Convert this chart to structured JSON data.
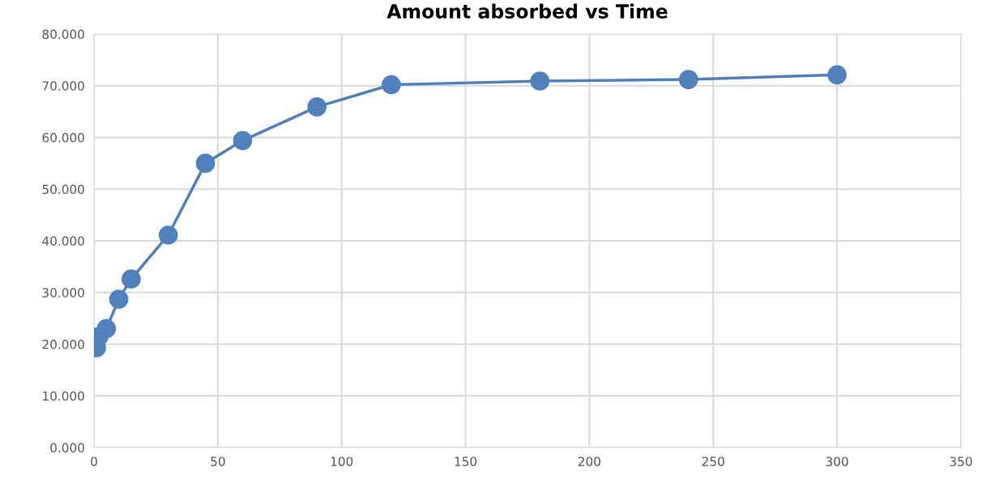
{
  "chart_data": {
    "type": "line",
    "title": "Amount absorbed vs Time",
    "x": [
      1,
      2,
      5,
      10,
      15,
      30,
      45,
      60,
      90,
      120,
      180,
      240,
      300
    ],
    "series": [
      {
        "color": "#4f81bd",
        "values": [
          19.3,
          21.5,
          23.0,
          28.7,
          32.6,
          41.1,
          55.0,
          59.4,
          65.9,
          70.2,
          70.9,
          71.2,
          72.1
        ]
      }
    ],
    "xlim": [
      0,
      350
    ],
    "xticks": [
      0,
      50,
      100,
      150,
      200,
      250,
      300,
      350
    ],
    "ylim": [
      0,
      80
    ],
    "yticks": [
      {
        "value": 0,
        "label": "0.000"
      },
      {
        "value": 10,
        "label": "10.000"
      },
      {
        "value": 20,
        "label": "20.000"
      },
      {
        "value": 30,
        "label": "30.000"
      },
      {
        "value": 40,
        "label": "40.000"
      },
      {
        "value": 50,
        "label": "50.000"
      },
      {
        "value": 60,
        "label": "60.000"
      },
      {
        "value": 70,
        "label": "70.000"
      },
      {
        "value": 80,
        "label": "80.000"
      }
    ],
    "grid": true,
    "marker": "circle",
    "line_style": "solid"
  }
}
